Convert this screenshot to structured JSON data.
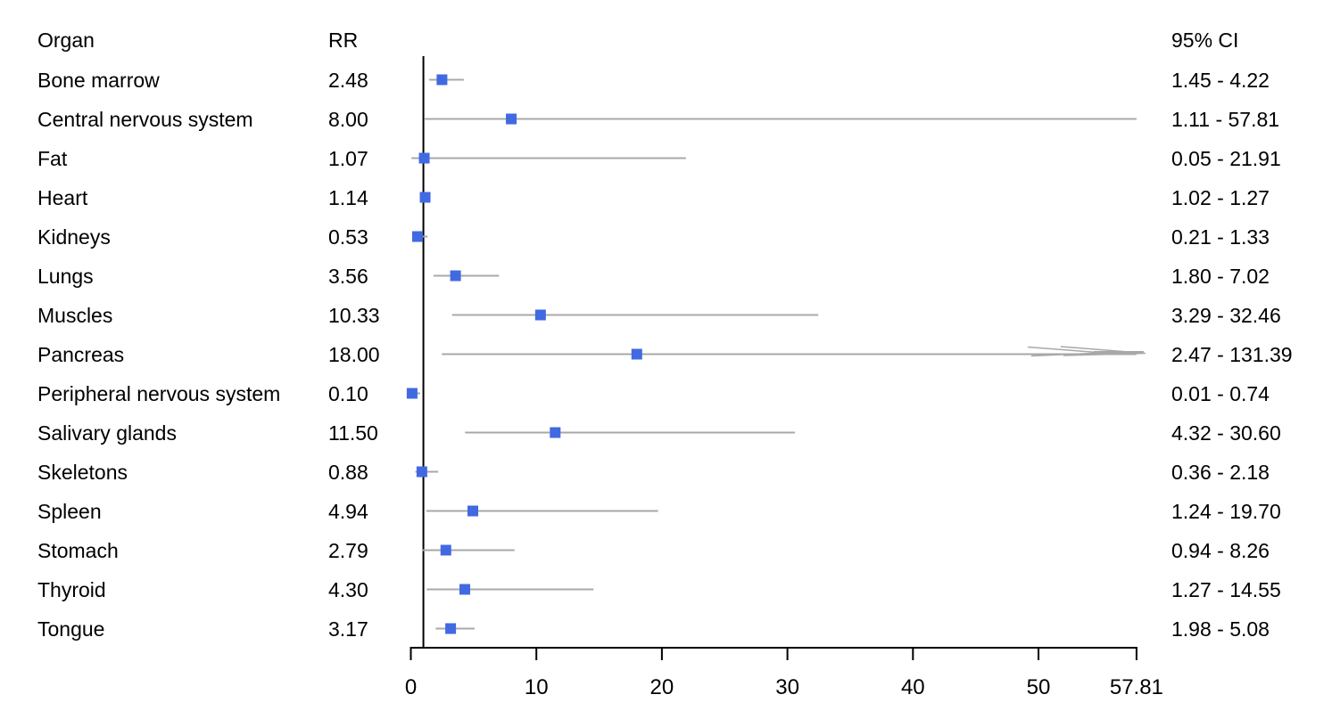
{
  "chart_data": {
    "type": "scatter",
    "subtype": "forest-plot",
    "title": "",
    "xlabel": "",
    "ylabel": "",
    "grid": false,
    "legend": false,
    "xlim": [
      0,
      57.81
    ],
    "xticks": [
      0,
      10,
      20,
      30,
      40,
      50,
      57.81
    ],
    "xtick_labels": [
      "0",
      "10",
      "20",
      "30",
      "40",
      "50",
      "57.81"
    ],
    "reference_line_x": 1,
    "columns": {
      "organ": "Organ",
      "rr": "RR",
      "ci": "95% CI"
    },
    "rows": [
      {
        "organ": "Bone marrow",
        "rr": 2.48,
        "rr_label": "2.48",
        "ci_low": 1.45,
        "ci_high": 4.22,
        "ci_label": "1.45 - 4.22"
      },
      {
        "organ": "Central nervous system",
        "rr": 8.0,
        "rr_label": "8.00",
        "ci_low": 1.11,
        "ci_high": 57.81,
        "ci_label": "1.11 - 57.81"
      },
      {
        "organ": "Fat",
        "rr": 1.07,
        "rr_label": "1.07",
        "ci_low": 0.05,
        "ci_high": 21.91,
        "ci_label": "0.05 - 21.91"
      },
      {
        "organ": "Heart",
        "rr": 1.14,
        "rr_label": "1.14",
        "ci_low": 1.02,
        "ci_high": 1.27,
        "ci_label": "1.02 - 1.27"
      },
      {
        "organ": "Kidneys",
        "rr": 0.53,
        "rr_label": "0.53",
        "ci_low": 0.21,
        "ci_high": 1.33,
        "ci_label": "0.21 - 1.33"
      },
      {
        "organ": "Lungs",
        "rr": 3.56,
        "rr_label": "3.56",
        "ci_low": 1.8,
        "ci_high": 7.02,
        "ci_label": "1.80 - 7.02"
      },
      {
        "organ": "Muscles",
        "rr": 10.33,
        "rr_label": "10.33",
        "ci_low": 3.29,
        "ci_high": 32.46,
        "ci_label": "3.29 - 32.46"
      },
      {
        "organ": "Pancreas",
        "rr": 18.0,
        "rr_label": "18.00",
        "ci_low": 2.47,
        "ci_high": 131.39,
        "ci_label": "2.47 - 131.39"
      },
      {
        "organ": "Peripheral nervous system",
        "rr": 0.1,
        "rr_label": "0.10",
        "ci_low": 0.01,
        "ci_high": 0.74,
        "ci_label": "0.01 - 0.74"
      },
      {
        "organ": "Salivary glands",
        "rr": 11.5,
        "rr_label": "11.50",
        "ci_low": 4.32,
        "ci_high": 30.6,
        "ci_label": "4.32 - 30.60"
      },
      {
        "organ": "Skeletons",
        "rr": 0.88,
        "rr_label": "0.88",
        "ci_low": 0.36,
        "ci_high": 2.18,
        "ci_label": "0.36 - 2.18"
      },
      {
        "organ": "Spleen",
        "rr": 4.94,
        "rr_label": "4.94",
        "ci_low": 1.24,
        "ci_high": 19.7,
        "ci_label": "1.24 - 19.70"
      },
      {
        "organ": "Stomach",
        "rr": 2.79,
        "rr_label": "2.79",
        "ci_low": 0.94,
        "ci_high": 8.26,
        "ci_label": "0.94 - 8.26"
      },
      {
        "organ": "Thyroid",
        "rr": 4.3,
        "rr_label": "4.30",
        "ci_low": 1.27,
        "ci_high": 14.55,
        "ci_label": "1.27 - 14.55"
      },
      {
        "organ": "Tongue",
        "rr": 3.17,
        "rr_label": "3.17",
        "ci_low": 1.98,
        "ci_high": 5.08,
        "ci_label": "1.98 - 5.08"
      }
    ],
    "colors": {
      "marker": "#4169e1",
      "ci_line": "#a8a8a8",
      "axis": "#000000",
      "reference_line": "#000000",
      "text": "#000000",
      "background": "#ffffff"
    }
  }
}
